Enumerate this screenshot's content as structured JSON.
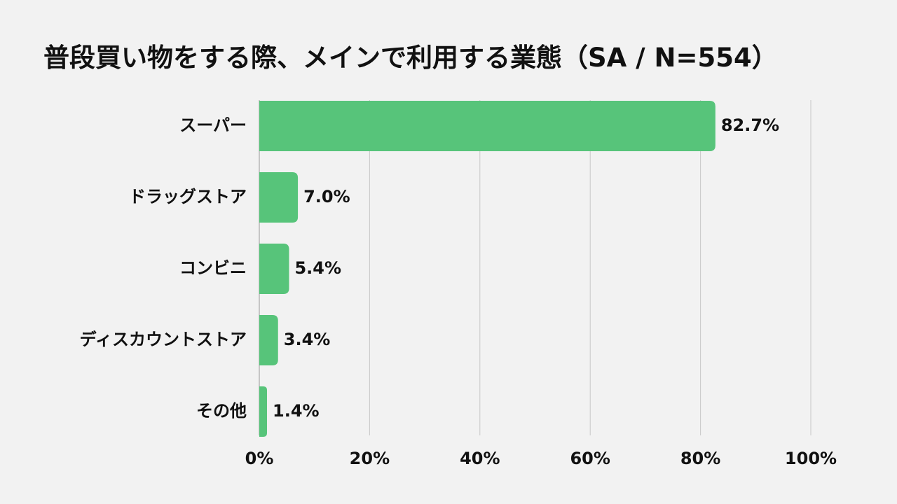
{
  "chart_data": {
    "type": "bar",
    "orientation": "horizontal",
    "title": "普段買い物をする際、メインで利用する業態（SA / N=554）",
    "categories": [
      "スーパー",
      "ドラッグストア",
      "コンビニ",
      "ディスカウントストア",
      "その他"
    ],
    "values": [
      82.7,
      7.0,
      5.4,
      3.4,
      1.4
    ],
    "value_labels": [
      "82.7%",
      "7.0%",
      "5.4%",
      "3.4%",
      "1.4%"
    ],
    "xlim": [
      0,
      100
    ],
    "xticks": [
      0,
      20,
      40,
      60,
      80,
      100
    ],
    "xtick_labels": [
      "0%",
      "20%",
      "40%",
      "60%",
      "80%",
      "100%"
    ],
    "xlabel": "",
    "ylabel": "",
    "grid": true,
    "legend": "none",
    "bar_color": "#57c47a",
    "background_color": "#f2f2f2"
  }
}
